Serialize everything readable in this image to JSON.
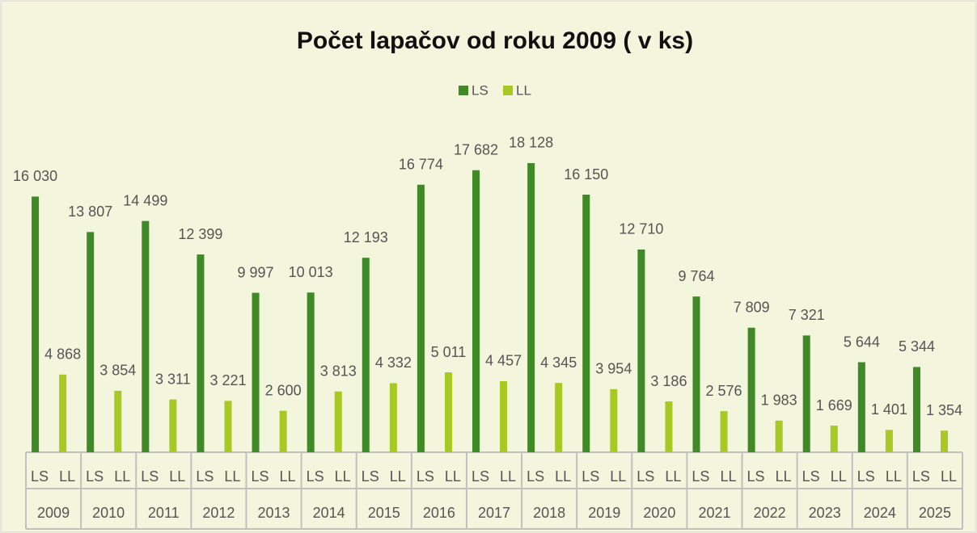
{
  "chart_data": {
    "type": "bar",
    "title": "Počet lapačov od roku 2009 ( v ks)",
    "categories": [
      "2009",
      "2010",
      "2011",
      "2012",
      "2013",
      "2014",
      "2015",
      "2016",
      "2017",
      "2018",
      "2019",
      "2020",
      "2021",
      "2022",
      "2023",
      "2024",
      "2025"
    ],
    "series": [
      {
        "name": "LS",
        "color": "#3f8a26",
        "values": [
          16030,
          13807,
          14499,
          12399,
          9997,
          10013,
          12193,
          16774,
          17682,
          18128,
          16150,
          12710,
          9764,
          7809,
          7321,
          5644,
          5344
        ],
        "value_labels": [
          "16 030",
          "13 807",
          "14 499",
          "12 399",
          "9 997",
          "10 013",
          "12 193",
          "16 774",
          "17 682",
          "18 128",
          "16 150",
          "12 710",
          "9 764",
          "7 809",
          "7 321",
          "5 644",
          "5 344"
        ]
      },
      {
        "name": "LL",
        "color": "#a8c824",
        "values": [
          4868,
          3854,
          3311,
          3221,
          2600,
          3813,
          4332,
          5011,
          4457,
          4345,
          3954,
          3186,
          2576,
          1983,
          1669,
          1401,
          1354
        ],
        "value_labels": [
          "4 868",
          "3 854",
          "3 311",
          "3 221",
          "2 600",
          "3 813",
          "4 332",
          "5 011",
          "4 457",
          "4 345",
          "3 954",
          "3 186",
          "2 576",
          "1 983",
          "1 669",
          "1 401",
          "1 354"
        ]
      }
    ],
    "ylim": [
      0,
      20000
    ],
    "legend": "top"
  }
}
